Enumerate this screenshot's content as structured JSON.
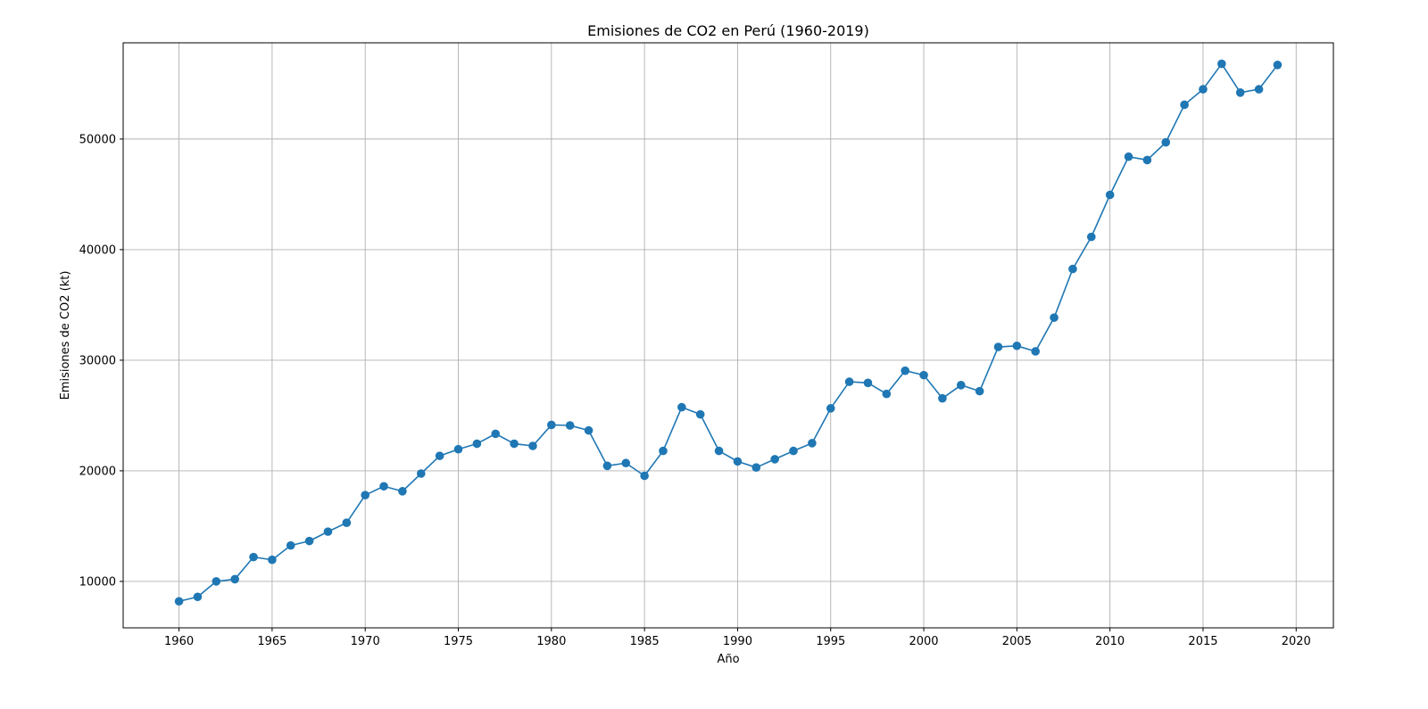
{
  "chart_data": {
    "type": "line",
    "title": "Emisiones de CO2 en Perú (1960-2019)",
    "xlabel": "Año",
    "ylabel": "Emisiones de CO2 (kt)",
    "xlim": [
      1957,
      2022
    ],
    "ylim": [
      5800,
      58700
    ],
    "xticks": [
      1960,
      1965,
      1970,
      1975,
      1980,
      1985,
      1990,
      1995,
      2000,
      2005,
      2010,
      2015,
      2020
    ],
    "yticks": [
      10000,
      20000,
      30000,
      40000,
      50000
    ],
    "grid": true,
    "marker": "circle",
    "line_color": "#1f77b4",
    "x": [
      1960,
      1961,
      1962,
      1963,
      1964,
      1965,
      1966,
      1967,
      1968,
      1969,
      1970,
      1971,
      1972,
      1973,
      1974,
      1975,
      1976,
      1977,
      1978,
      1979,
      1980,
      1981,
      1982,
      1983,
      1984,
      1985,
      1986,
      1987,
      1988,
      1989,
      1990,
      1991,
      1992,
      1993,
      1994,
      1995,
      1996,
      1997,
      1998,
      1999,
      2000,
      2001,
      2002,
      2003,
      2004,
      2005,
      2006,
      2007,
      2008,
      2009,
      2010,
      2011,
      2012,
      2013,
      2014,
      2015,
      2016,
      2017,
      2018,
      2019
    ],
    "values": [
      8200,
      8600,
      10000,
      10200,
      12200,
      11950,
      13250,
      13650,
      14500,
      15300,
      17800,
      18600,
      18150,
      19750,
      21350,
      21950,
      22450,
      23350,
      22450,
      22250,
      24150,
      24100,
      23650,
      20450,
      20700,
      19550,
      21800,
      25750,
      25100,
      21800,
      20850,
      20300,
      21050,
      21800,
      22500,
      25650,
      28050,
      27950,
      26950,
      29050,
      28650,
      26550,
      27750,
      27200,
      31200,
      31300,
      30800,
      33850,
      38250,
      41150,
      44950,
      48400,
      48100,
      49700,
      53100,
      54500,
      56800,
      54200,
      54500,
      56700
    ]
  }
}
